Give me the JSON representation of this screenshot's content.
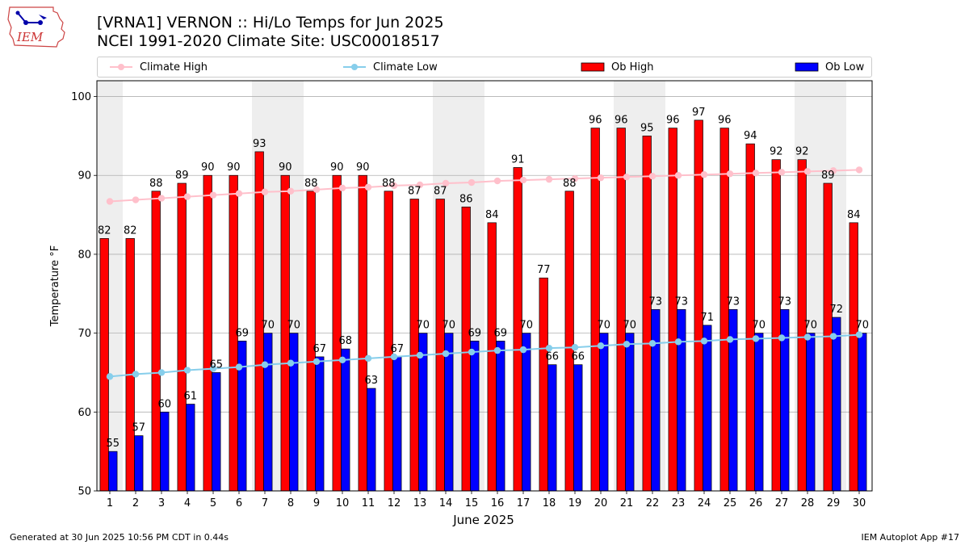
{
  "header": {
    "logo_text": "IEM",
    "title_line1": "[VRNA1] VERNON :: Hi/Lo Temps for Jun 2025",
    "title_line2": "NCEI 1991-2020 Climate Site: USC00018517"
  },
  "footer": {
    "generated": "Generated at 30 Jun 2025 10:56 PM CDT in 0.44s",
    "app": "IEM Autoplot App #17"
  },
  "colors": {
    "ob_high": "#ff0000",
    "ob_low": "#0000ff",
    "climate_high": "#ffc0cb",
    "climate_low": "#87ceeb",
    "weekend_band": "#eeeeee",
    "grid": "#b0b0b0"
  },
  "chart_data": {
    "type": "bar",
    "title": "[VRNA1] VERNON :: Hi/Lo Temps for Jun 2025",
    "subtitle": "NCEI 1991-2020 Climate Site: USC00018517",
    "xlabel": "June 2025",
    "ylabel": "Temperature °F",
    "ylim": [
      50,
      102
    ],
    "yticks": [
      50,
      60,
      70,
      80,
      90,
      100
    ],
    "grid": true,
    "legend_position": "top",
    "x": [
      1,
      2,
      3,
      4,
      5,
      6,
      7,
      8,
      9,
      10,
      11,
      12,
      13,
      14,
      15,
      16,
      17,
      18,
      19,
      20,
      21,
      22,
      23,
      24,
      25,
      26,
      27,
      28,
      29,
      30
    ],
    "weekend_days": [
      1,
      7,
      8,
      14,
      15,
      21,
      22,
      28,
      29
    ],
    "series": [
      {
        "name": "Climate High",
        "kind": "line",
        "values": [
          86.7,
          86.9,
          87.1,
          87.3,
          87.5,
          87.7,
          87.9,
          88.0,
          88.2,
          88.4,
          88.5,
          88.7,
          88.8,
          89.0,
          89.1,
          89.3,
          89.4,
          89.5,
          89.6,
          89.7,
          89.8,
          89.9,
          90.0,
          90.1,
          90.2,
          90.3,
          90.4,
          90.5,
          90.6,
          90.7
        ]
      },
      {
        "name": "Climate Low",
        "kind": "line",
        "values": [
          64.5,
          64.8,
          65.0,
          65.3,
          65.5,
          65.7,
          66.0,
          66.2,
          66.4,
          66.6,
          66.8,
          67.0,
          67.2,
          67.4,
          67.6,
          67.8,
          67.9,
          68.1,
          68.2,
          68.4,
          68.6,
          68.7,
          68.9,
          69.0,
          69.2,
          69.3,
          69.4,
          69.5,
          69.6,
          69.8
        ]
      },
      {
        "name": "Ob High",
        "kind": "bar",
        "values": [
          82,
          82,
          88,
          89,
          90,
          90,
          93,
          90,
          88,
          90,
          90,
          88,
          87,
          87,
          86,
          84,
          91,
          77,
          88,
          96,
          96,
          95,
          96,
          97,
          96,
          94,
          92,
          92,
          89,
          84
        ]
      },
      {
        "name": "Ob Low",
        "kind": "bar",
        "values": [
          55,
          57,
          60,
          61,
          65,
          69,
          70,
          70,
          67,
          68,
          63,
          67,
          70,
          70,
          69,
          69,
          70,
          66,
          66,
          70,
          70,
          73,
          73,
          71,
          73,
          70,
          73,
          70,
          72,
          70
        ]
      }
    ]
  }
}
